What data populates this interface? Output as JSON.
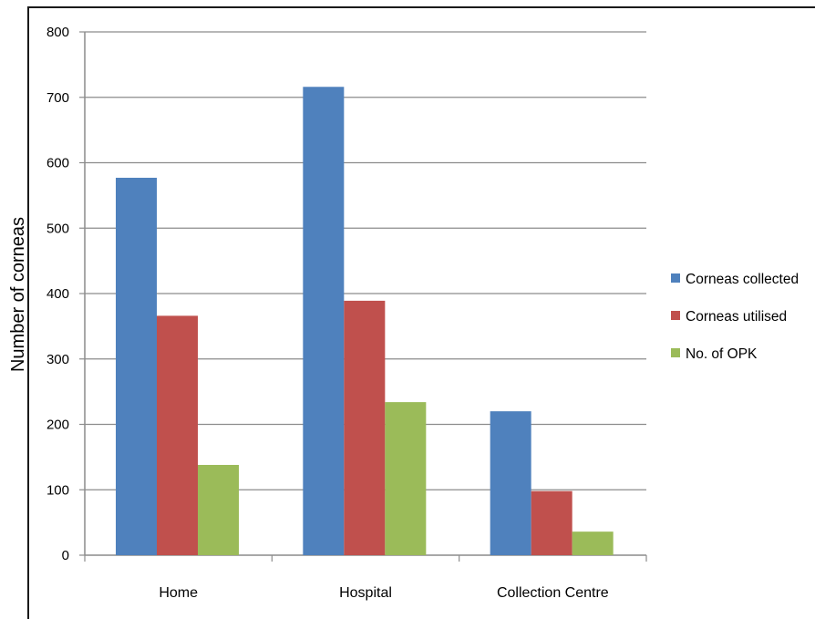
{
  "chart_data": {
    "type": "bar",
    "categories": [
      "Home",
      "Hospital",
      "Collection Centre"
    ],
    "series": [
      {
        "name": "Corneas collected",
        "values": [
          577,
          716,
          220
        ],
        "color": "#4F81BD"
      },
      {
        "name": "Corneas utilised",
        "values": [
          366,
          389,
          98
        ],
        "color": "#C0504D"
      },
      {
        "name": "No. of OPK",
        "values": [
          138,
          234,
          36
        ],
        "color": "#9BBB59"
      }
    ],
    "ylabel": "Number of corneas",
    "xlabel": "",
    "ylim": [
      0,
      800
    ],
    "yticks": [
      0,
      100,
      200,
      300,
      400,
      500,
      600,
      700,
      800
    ],
    "grid": true,
    "legend_position": "right"
  }
}
